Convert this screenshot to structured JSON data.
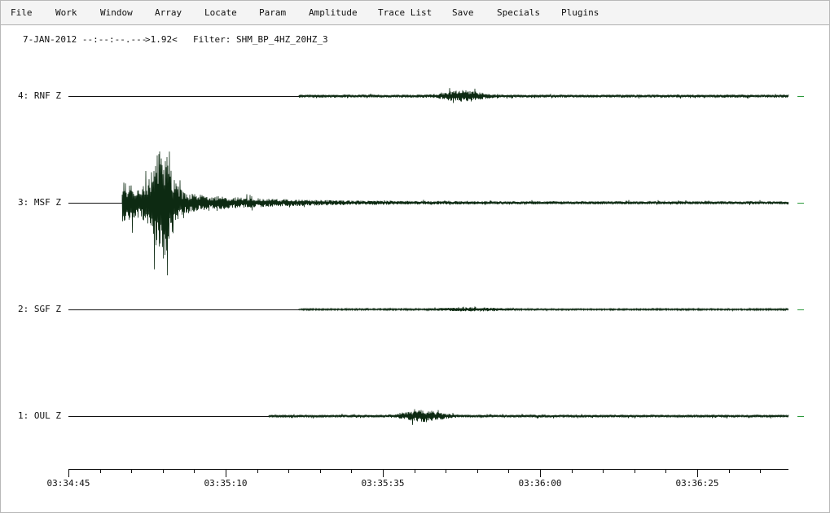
{
  "menu": [
    "File",
    "Work",
    "Window",
    "Array",
    "Locate",
    "Param",
    "Amplitude",
    "Trace List",
    "Save",
    "Specials",
    "Plugins"
  ],
  "header": {
    "date_time": "7-JAN-2012 --:--:--.---",
    "value": ">1.92<",
    "filter": "Filter: SHM_BP_4HZ_20HZ_3"
  },
  "traces": [
    "4: RNF Z",
    "3: MSF Z",
    "2: SGF Z",
    "1: OUL Z"
  ],
  "time_axis": [
    "03:34:45",
    "03:35:10",
    "03:35:35",
    "03:36:00",
    "03:36:25"
  ]
}
